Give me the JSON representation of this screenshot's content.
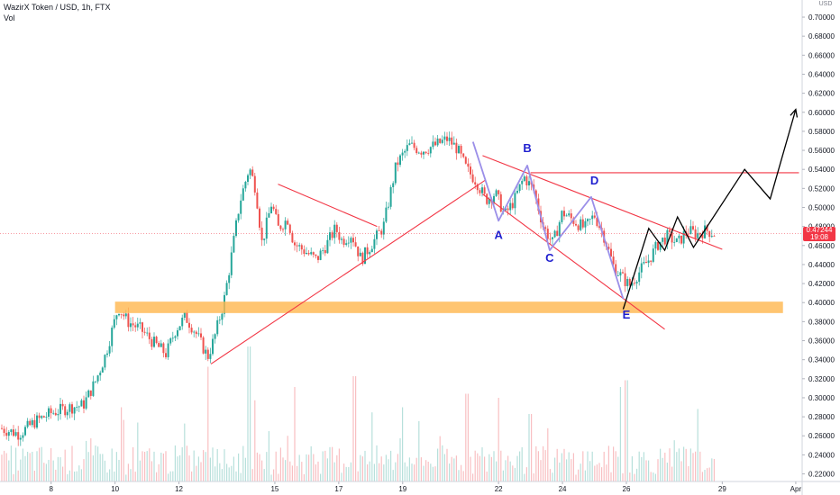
{
  "header": {
    "title": "WazirX Token / USD, 1h, FTX",
    "volume_label": "Vol",
    "currency": "USD"
  },
  "price_tag": {
    "price": "0.47244",
    "countdown": "19:08"
  },
  "chart_data": {
    "type": "candlestick",
    "y_axis": {
      "position": "right",
      "ylim": [
        0.212,
        0.718
      ],
      "ticks": [
        "0.70000",
        "0.68000",
        "0.66000",
        "0.64000",
        "0.62000",
        "0.60000",
        "0.58000",
        "0.56000",
        "0.54000",
        "0.52000",
        "0.50000",
        "0.48000",
        "0.46000",
        "0.44000",
        "0.42000",
        "0.40000",
        "0.38000",
        "0.36000",
        "0.34000",
        "0.32000",
        "0.30000",
        "0.28000",
        "0.26000",
        "0.24000",
        "0.22000"
      ]
    },
    "x_axis": {
      "xlim": [
        6.4,
        31.5
      ],
      "ticks": [
        {
          "label": "8",
          "x": 8
        },
        {
          "label": "10",
          "x": 10
        },
        {
          "label": "12",
          "x": 12
        },
        {
          "label": "15",
          "x": 15
        },
        {
          "label": "17",
          "x": 17
        },
        {
          "label": "19",
          "x": 19
        },
        {
          "label": "22",
          "x": 22
        },
        {
          "label": "24",
          "x": 24
        },
        {
          "label": "26",
          "x": 26
        },
        {
          "label": "29",
          "x": 29
        },
        {
          "label": "Apr",
          "x": 31.3
        }
      ]
    },
    "price_path": [
      [
        6.4,
        0.268
      ],
      [
        7.0,
        0.262
      ],
      [
        7.5,
        0.275
      ],
      [
        8.0,
        0.284
      ],
      [
        8.6,
        0.29
      ],
      [
        9.0,
        0.292
      ],
      [
        9.4,
        0.318
      ],
      [
        9.7,
        0.345
      ],
      [
        9.9,
        0.37
      ],
      [
        10.1,
        0.395
      ],
      [
        10.4,
        0.38
      ],
      [
        10.8,
        0.372
      ],
      [
        11.2,
        0.358
      ],
      [
        11.6,
        0.346
      ],
      [
        11.9,
        0.372
      ],
      [
        12.2,
        0.385
      ],
      [
        12.5,
        0.37
      ],
      [
        12.9,
        0.343
      ],
      [
        13.1,
        0.362
      ],
      [
        13.4,
        0.4
      ],
      [
        13.6,
        0.44
      ],
      [
        13.9,
        0.505
      ],
      [
        14.2,
        0.542
      ],
      [
        14.4,
        0.52
      ],
      [
        14.6,
        0.462
      ],
      [
        14.9,
        0.505
      ],
      [
        15.1,
        0.478
      ],
      [
        15.4,
        0.488
      ],
      [
        15.6,
        0.462
      ],
      [
        15.9,
        0.455
      ],
      [
        16.3,
        0.445
      ],
      [
        16.6,
        0.46
      ],
      [
        16.9,
        0.478
      ],
      [
        17.1,
        0.465
      ],
      [
        17.4,
        0.472
      ],
      [
        17.7,
        0.445
      ],
      [
        18.0,
        0.46
      ],
      [
        18.4,
        0.48
      ],
      [
        18.8,
        0.545
      ],
      [
        19.2,
        0.565
      ],
      [
        19.6,
        0.56
      ],
      [
        20.0,
        0.565
      ],
      [
        20.4,
        0.572
      ],
      [
        20.7,
        0.562
      ],
      [
        21.0,
        0.54
      ],
      [
        21.3,
        0.528
      ],
      [
        21.6,
        0.508
      ],
      [
        21.9,
        0.515
      ],
      [
        22.2,
        0.492
      ],
      [
        22.5,
        0.508
      ],
      [
        22.8,
        0.532
      ],
      [
        23.1,
        0.518
      ],
      [
        23.4,
        0.48
      ],
      [
        23.7,
        0.462
      ],
      [
        24.0,
        0.495
      ],
      [
        24.4,
        0.485
      ],
      [
        24.7,
        0.478
      ],
      [
        25.0,
        0.492
      ],
      [
        25.3,
        0.47
      ],
      [
        25.6,
        0.438
      ],
      [
        25.9,
        0.425
      ],
      [
        26.1,
        0.418
      ],
      [
        26.4,
        0.432
      ],
      [
        26.7,
        0.445
      ],
      [
        27.0,
        0.462
      ],
      [
        27.3,
        0.47
      ],
      [
        27.6,
        0.462
      ],
      [
        27.9,
        0.476
      ],
      [
        28.2,
        0.472
      ],
      [
        28.5,
        0.476
      ],
      [
        28.8,
        0.472
      ]
    ],
    "last_price": 0.47244,
    "volume_spikes": [
      {
        "x": 10.2,
        "v": 0.55
      },
      {
        "x": 12.9,
        "v": 0.85
      },
      {
        "x": 14.2,
        "v": 1.0
      },
      {
        "x": 15.6,
        "v": 0.7
      },
      {
        "x": 17.5,
        "v": 0.78
      },
      {
        "x": 19.0,
        "v": 0.55
      },
      {
        "x": 21.0,
        "v": 0.65
      },
      {
        "x": 22.0,
        "v": 0.62
      },
      {
        "x": 23.0,
        "v": 0.5
      },
      {
        "x": 25.8,
        "v": 0.7
      },
      {
        "x": 26.0,
        "v": 0.75
      }
    ],
    "annotations": {
      "trend_lines": [
        {
          "name": "support-trendline",
          "from": [
            13.0,
            0.3355
          ],
          "to": [
            21.6,
            0.529
          ]
        },
        {
          "name": "pennant-upper",
          "from": [
            15.1,
            0.5245
          ],
          "to": [
            18.2,
            0.48
          ]
        },
        {
          "name": "channel-upper",
          "from": [
            21.5,
            0.5545
          ],
          "to": [
            29.0,
            0.456
          ]
        },
        {
          "name": "channel-lower",
          "from": [
            21.5,
            0.514
          ],
          "to": [
            27.2,
            0.372
          ]
        },
        {
          "name": "resistance-line",
          "from": [
            23.0,
            0.5365
          ],
          "to": [
            31.4,
            0.5365
          ]
        }
      ],
      "zone": {
        "name": "support-zone",
        "y_low": 0.389,
        "y_high": 0.401,
        "from_x": 10.0,
        "to_x": 30.9
      },
      "wave_path": {
        "name": "abcde-wave",
        "points": [
          [
            21.2,
            0.569
          ],
          [
            22.0,
            0.486
          ],
          [
            22.9,
            0.544
          ],
          [
            23.6,
            0.455
          ],
          [
            24.9,
            0.511
          ],
          [
            25.9,
            0.404
          ]
        ]
      },
      "projection_path": {
        "name": "projected-path",
        "points": [
          [
            25.9,
            0.393
          ],
          [
            26.7,
            0.478
          ],
          [
            27.2,
            0.455
          ],
          [
            27.6,
            0.49
          ],
          [
            28.1,
            0.458
          ],
          [
            29.7,
            0.54
          ],
          [
            30.5,
            0.509
          ],
          [
            31.3,
            0.603
          ]
        ]
      },
      "wave_labels": [
        {
          "label": "A",
          "x": 22.0,
          "y": 0.467
        },
        {
          "label": "B",
          "x": 22.9,
          "y": 0.558
        },
        {
          "label": "C",
          "x": 23.6,
          "y": 0.443
        },
        {
          "label": "D",
          "x": 25.0,
          "y": 0.524
        },
        {
          "label": "E",
          "x": 26.0,
          "y": 0.383
        }
      ]
    }
  }
}
